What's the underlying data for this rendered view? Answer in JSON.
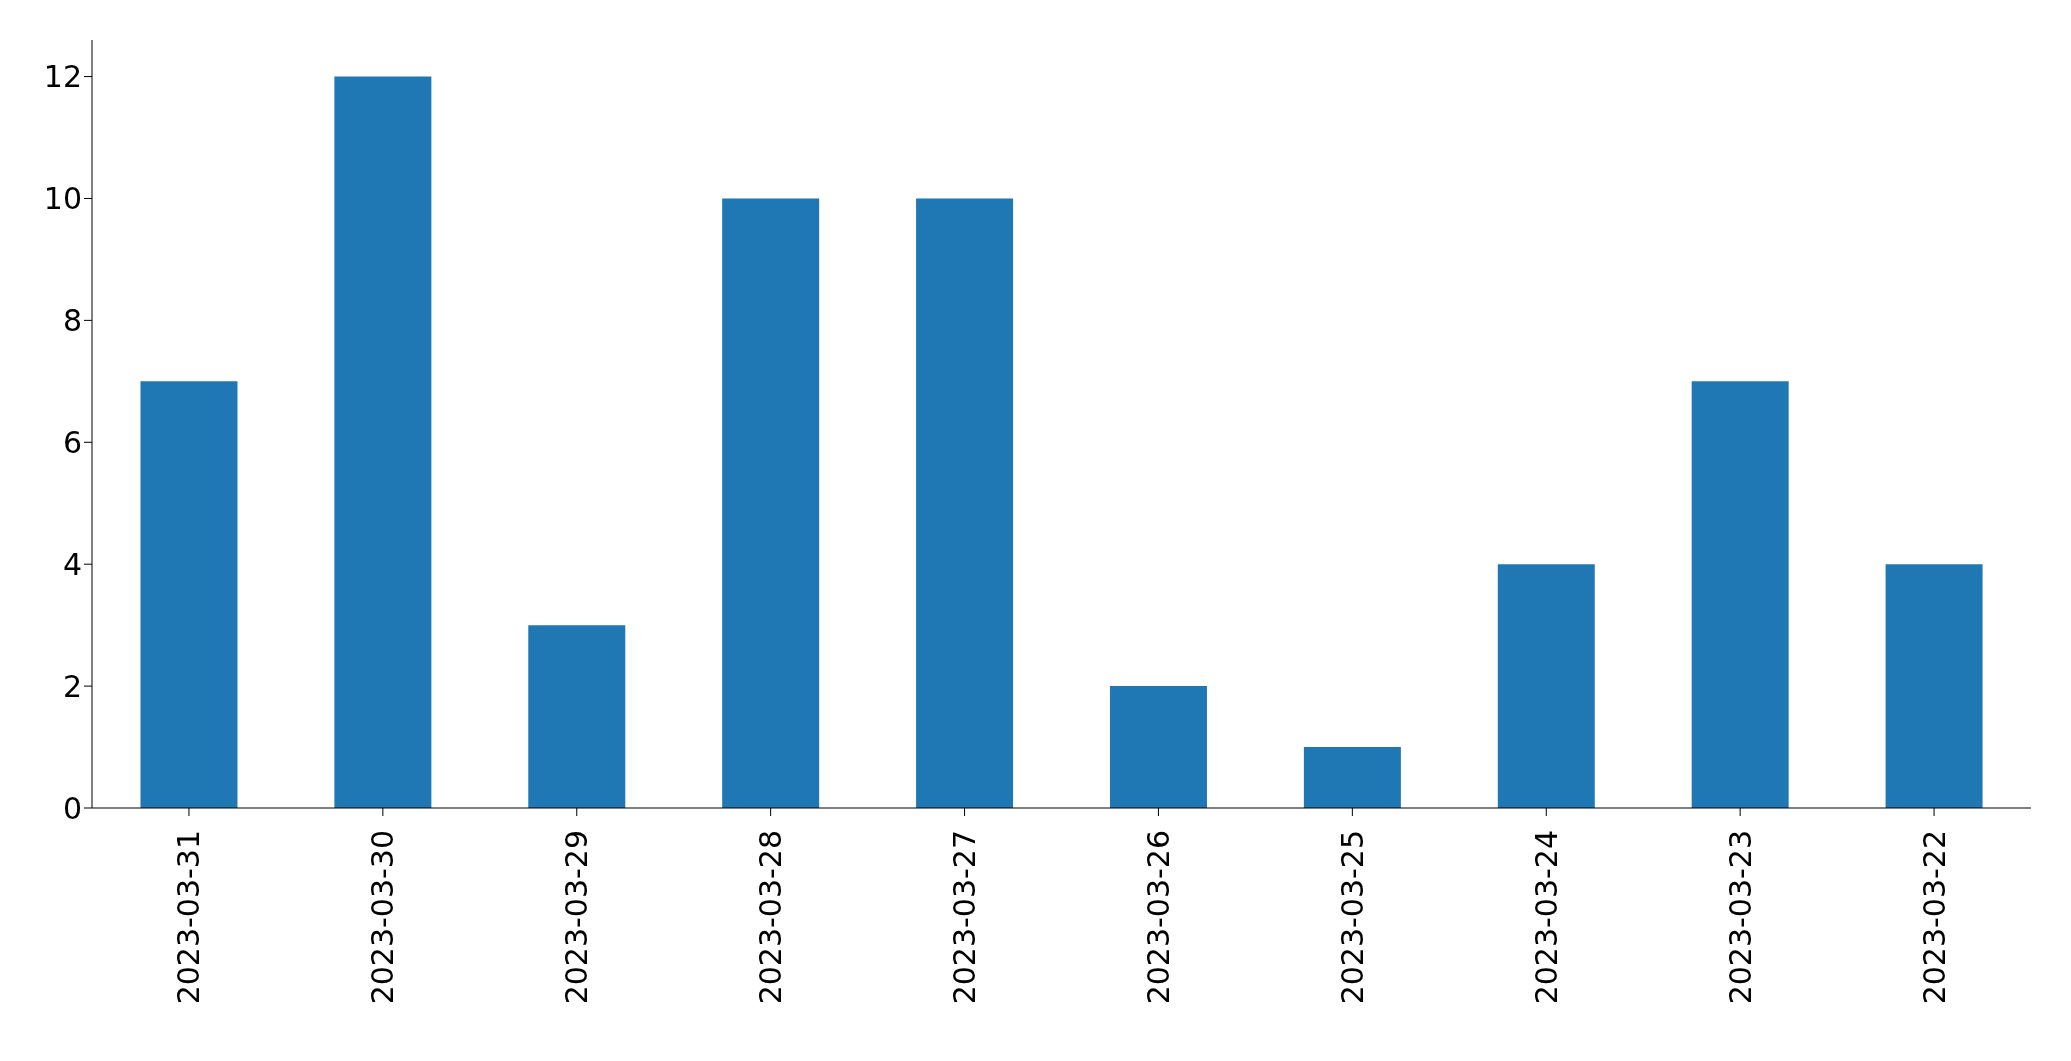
{
  "chart_data": {
    "type": "bar",
    "categories": [
      "2023-03-31",
      "2023-03-30",
      "2023-03-29",
      "2023-03-28",
      "2023-03-27",
      "2023-03-26",
      "2023-03-25",
      "2023-03-24",
      "2023-03-23",
      "2023-03-22"
    ],
    "values": [
      7,
      12,
      3,
      10,
      10,
      2,
      1,
      4,
      7,
      4
    ],
    "color": "#1f77b4",
    "ylim": [
      0,
      12.6
    ],
    "yticks": [
      0,
      2,
      4,
      6,
      8,
      10,
      12
    ],
    "grid": false,
    "legend": false
  }
}
